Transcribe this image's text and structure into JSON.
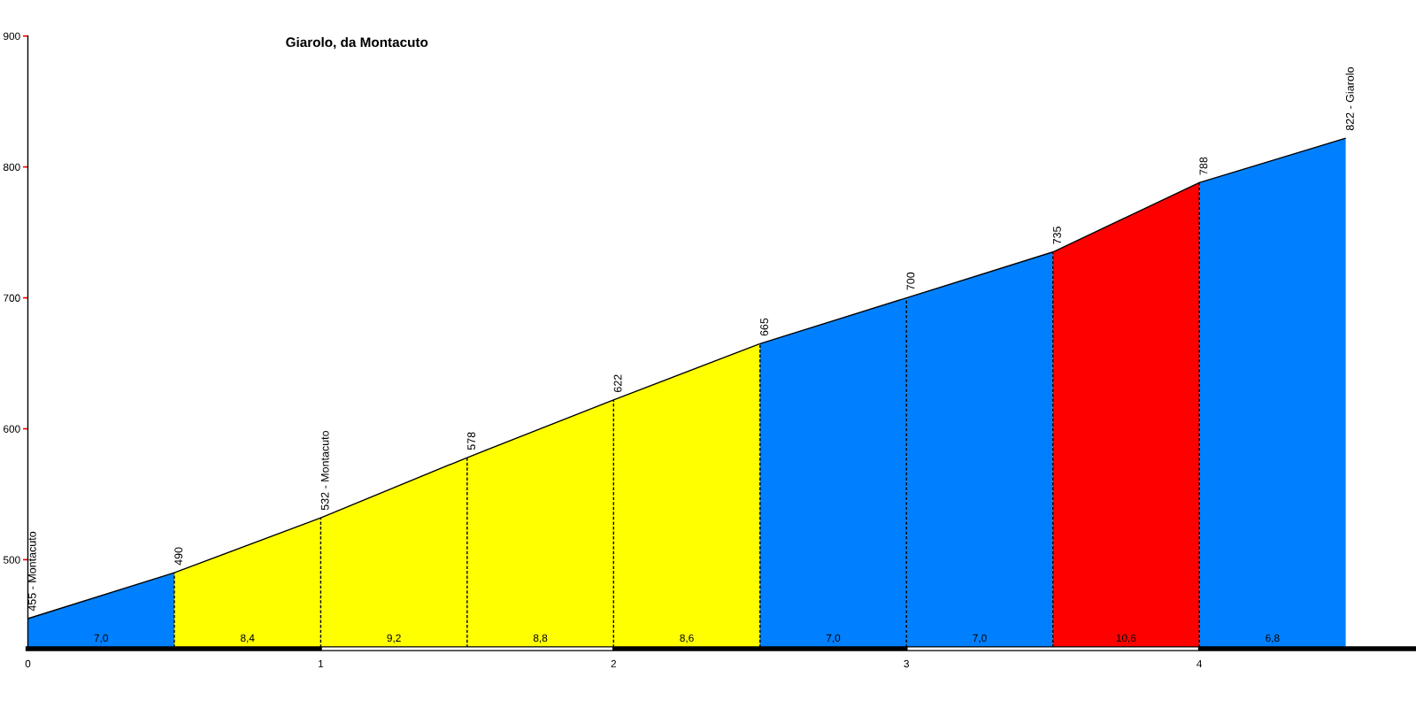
{
  "chart_data": {
    "type": "area",
    "title": "Giarolo, da Montacuto",
    "xlim": [
      0,
      4.74
    ],
    "xticks": [
      0,
      1,
      2,
      3,
      4
    ],
    "ylim": [
      432,
      900
    ],
    "yticks": [
      500,
      600,
      700,
      800,
      900
    ],
    "series": [
      {
        "x": [
          0,
          0.5
        ],
        "values": [
          455,
          490
        ],
        "color": "#0080ff",
        "value_labels": [
          "455 - Montacuto",
          "490"
        ]
      },
      {
        "x": [
          0.5,
          1
        ],
        "values": [
          490,
          532
        ],
        "color": "#ffff00",
        "value_labels": [
          null,
          "532 - Montacuto"
        ]
      },
      {
        "x": [
          1,
          1.5
        ],
        "values": [
          532,
          578
        ],
        "color": "#ffff00",
        "value_labels": [
          null,
          "578"
        ]
      },
      {
        "x": [
          1.5,
          2
        ],
        "values": [
          578,
          622
        ],
        "color": "#ffff00",
        "value_labels": [
          null,
          "622"
        ]
      },
      {
        "x": [
          2,
          2.5
        ],
        "values": [
          622,
          665
        ],
        "color": "#ffff00",
        "value_labels": [
          null,
          "665"
        ]
      },
      {
        "x": [
          2.5,
          3
        ],
        "values": [
          665,
          700
        ],
        "color": "#0080ff",
        "value_labels": [
          null,
          "700"
        ]
      },
      {
        "x": [
          3,
          3.5
        ],
        "values": [
          700,
          735
        ],
        "color": "#0080ff",
        "value_labels": [
          null,
          "735"
        ]
      },
      {
        "x": [
          3.5,
          4
        ],
        "values": [
          735,
          788
        ],
        "color": "#ff0000",
        "value_labels": [
          null,
          "788"
        ]
      },
      {
        "x": [
          4,
          4.5
        ],
        "values": [
          788,
          822
        ],
        "color": "#0080ff",
        "value_labels": [
          null,
          "822 - Giarolo"
        ]
      }
    ],
    "annotations": [
      {
        "text": "7,0",
        "x": 0.25,
        "y": 432
      },
      {
        "text": "8,4",
        "x": 0.75,
        "y": 432
      },
      {
        "text": "9,2",
        "x": 1.25,
        "y": 432
      },
      {
        "text": "8,8",
        "x": 1.75,
        "y": 432
      },
      {
        "text": "8,6",
        "x": 2.25,
        "y": 432
      },
      {
        "text": "7,0",
        "x": 2.75,
        "y": 432
      },
      {
        "text": "7,0",
        "x": 3.25,
        "y": 432
      },
      {
        "text": "10,6",
        "x": 3.75,
        "y": 432
      },
      {
        "text": "6,8",
        "x": 4.25,
        "y": 432
      }
    ]
  }
}
